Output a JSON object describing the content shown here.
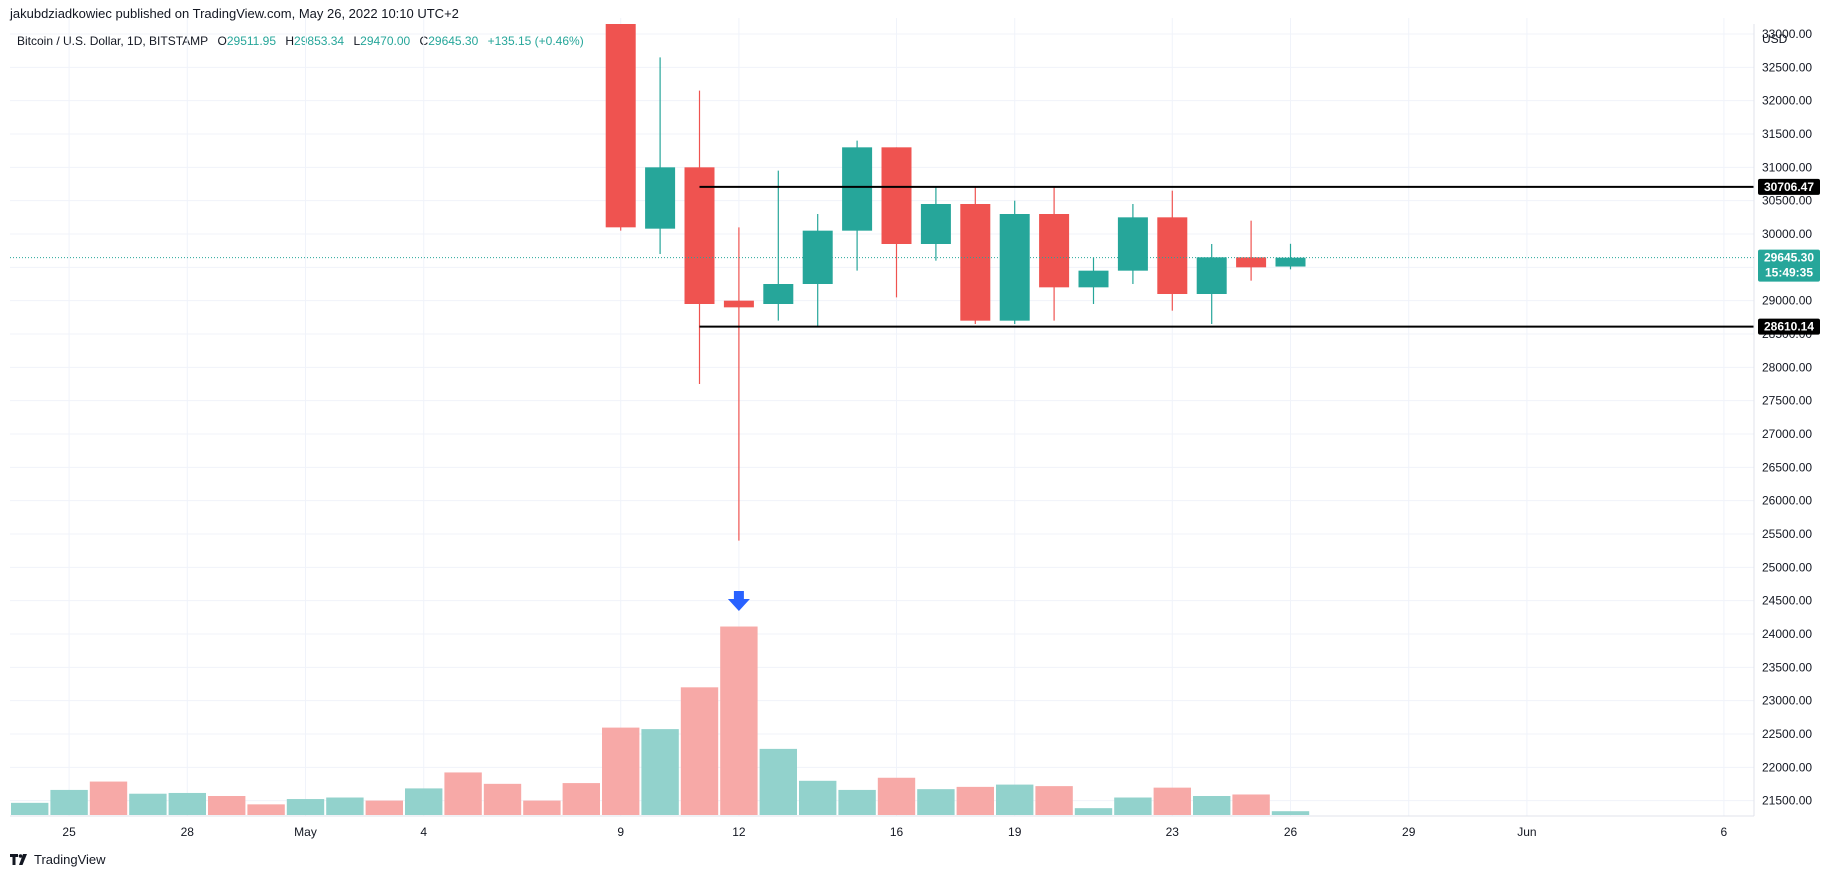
{
  "header": {
    "published": "jakubdziadkowiec published on TradingView.com, May 26, 2022 10:10 UTC+2",
    "symbol": "Bitcoin / U.S. Dollar, 1D, BITSTAMP",
    "open_label": "O",
    "open": "29511.95",
    "high_label": "H",
    "high": "29853.34",
    "low_label": "L",
    "low": "29470.00",
    "close_label": "C",
    "close": "29645.30",
    "change": "+135.15 (+0.46%)"
  },
  "footer": {
    "brand": "TradingView",
    "logo_icon": "tradingview-logo-icon"
  },
  "colors": {
    "up": "#26a69a",
    "down": "#ef5350",
    "up_volume": "#92d2cc",
    "down_volume": "#f7a9a7",
    "level_line": "#000000",
    "arrow": "#2962ff"
  },
  "chart_data": {
    "type": "candlestick",
    "currency_label": "USD",
    "y_ticks": [
      "33000.00",
      "32500.00",
      "32000.00",
      "31500.00",
      "31000.00",
      "30500.00",
      "30000.00",
      "29500.00",
      "29000.00",
      "28500.00",
      "28000.00",
      "27500.00",
      "27000.00",
      "26500.00",
      "26000.00",
      "25500.00",
      "25000.00",
      "24500.00",
      "24000.00",
      "23500.00",
      "23000.00",
      "22500.00",
      "22000.00",
      "21500.00"
    ],
    "ylim": [
      21300,
      33150
    ],
    "x_ticks": [
      {
        "index": 1,
        "label": "25"
      },
      {
        "index": 4,
        "label": "28"
      },
      {
        "index": 7,
        "label": "May"
      },
      {
        "index": 10,
        "label": "4"
      },
      {
        "index": 15,
        "label": "9"
      },
      {
        "index": 18,
        "label": "12"
      },
      {
        "index": 22,
        "label": "16"
      },
      {
        "index": 25,
        "label": "19"
      },
      {
        "index": 29,
        "label": "23"
      },
      {
        "index": 32,
        "label": "26"
      },
      {
        "index": 35,
        "label": "29"
      },
      {
        "index": 38,
        "label": "Jun"
      },
      {
        "index": 43,
        "label": "6"
      }
    ],
    "candles": [
      {
        "index": 15,
        "date": "May 9",
        "open": 33800,
        "high": 34200,
        "low": 30050,
        "close": 30100
      },
      {
        "index": 16,
        "date": "May 10",
        "open": 30080,
        "high": 32650,
        "low": 29700,
        "close": 31000
      },
      {
        "index": 17,
        "date": "May 11",
        "open": 31000,
        "high": 32150,
        "low": 27750,
        "close": 28950
      },
      {
        "index": 18,
        "date": "May 12",
        "open": 29000,
        "high": 30100,
        "low": 25400,
        "close": 28900
      },
      {
        "index": 19,
        "date": "May 13",
        "open": 28950,
        "high": 30950,
        "low": 28700,
        "close": 29250
      },
      {
        "index": 20,
        "date": "May 14",
        "open": 29250,
        "high": 30300,
        "low": 28600,
        "close": 30050
      },
      {
        "index": 21,
        "date": "May 15",
        "open": 30050,
        "high": 31400,
        "low": 29450,
        "close": 31300
      },
      {
        "index": 22,
        "date": "May 16",
        "open": 31300,
        "high": 31300,
        "low": 29050,
        "close": 29850
      },
      {
        "index": 23,
        "date": "May 17",
        "open": 29850,
        "high": 30700,
        "low": 29600,
        "close": 30450
      },
      {
        "index": 24,
        "date": "May 18",
        "open": 30450,
        "high": 30700,
        "low": 28650,
        "close": 28700
      },
      {
        "index": 25,
        "date": "May 19",
        "open": 28700,
        "high": 30500,
        "low": 28650,
        "close": 30300
      },
      {
        "index": 26,
        "date": "May 20",
        "open": 30300,
        "high": 30700,
        "low": 28700,
        "close": 29200
      },
      {
        "index": 27,
        "date": "May 21",
        "open": 29200,
        "high": 29650,
        "low": 28950,
        "close": 29450
      },
      {
        "index": 28,
        "date": "May 22",
        "open": 29450,
        "high": 30450,
        "low": 29250,
        "close": 30250
      },
      {
        "index": 29,
        "date": "May 23",
        "open": 30250,
        "high": 30650,
        "low": 28850,
        "close": 29100
      },
      {
        "index": 30,
        "date": "May 24",
        "open": 29100,
        "high": 29850,
        "low": 28650,
        "close": 29650
      },
      {
        "index": 31,
        "date": "May 25",
        "open": 29650,
        "high": 30200,
        "low": 29300,
        "close": 29500
      },
      {
        "index": 32,
        "date": "May 26",
        "open": 29512,
        "high": 29853,
        "low": 29470,
        "close": 29645
      }
    ],
    "volume": [
      {
        "index": 0,
        "dir": "up",
        "value": 0.16
      },
      {
        "index": 1,
        "dir": "up",
        "value": 0.33
      },
      {
        "index": 2,
        "dir": "down",
        "value": 0.44
      },
      {
        "index": 3,
        "dir": "up",
        "value": 0.28
      },
      {
        "index": 4,
        "dir": "up",
        "value": 0.29
      },
      {
        "index": 5,
        "dir": "down",
        "value": 0.25
      },
      {
        "index": 6,
        "dir": "down",
        "value": 0.14
      },
      {
        "index": 7,
        "dir": "up",
        "value": 0.21
      },
      {
        "index": 8,
        "dir": "up",
        "value": 0.23
      },
      {
        "index": 9,
        "dir": "down",
        "value": 0.19
      },
      {
        "index": 10,
        "dir": "up",
        "value": 0.35
      },
      {
        "index": 11,
        "dir": "down",
        "value": 0.56
      },
      {
        "index": 12,
        "dir": "down",
        "value": 0.41
      },
      {
        "index": 13,
        "dir": "down",
        "value": 0.19
      },
      {
        "index": 14,
        "dir": "down",
        "value": 0.42
      },
      {
        "index": 15,
        "dir": "down",
        "value": 1.15
      },
      {
        "index": 16,
        "dir": "up",
        "value": 1.13
      },
      {
        "index": 17,
        "dir": "down",
        "value": 1.68
      },
      {
        "index": 18,
        "dir": "down",
        "value": 2.48
      },
      {
        "index": 19,
        "dir": "up",
        "value": 0.87
      },
      {
        "index": 20,
        "dir": "up",
        "value": 0.45
      },
      {
        "index": 21,
        "dir": "up",
        "value": 0.33
      },
      {
        "index": 22,
        "dir": "down",
        "value": 0.49
      },
      {
        "index": 23,
        "dir": "up",
        "value": 0.34
      },
      {
        "index": 24,
        "dir": "down",
        "value": 0.37
      },
      {
        "index": 25,
        "dir": "up",
        "value": 0.4
      },
      {
        "index": 26,
        "dir": "down",
        "value": 0.38
      },
      {
        "index": 27,
        "dir": "up",
        "value": 0.09
      },
      {
        "index": 28,
        "dir": "up",
        "value": 0.23
      },
      {
        "index": 29,
        "dir": "down",
        "value": 0.36
      },
      {
        "index": 30,
        "dir": "up",
        "value": 0.25
      },
      {
        "index": 31,
        "dir": "down",
        "value": 0.27
      },
      {
        "index": 32,
        "dir": "up",
        "value": 0.05
      }
    ],
    "horizontal_levels": [
      {
        "price": 30706.47,
        "label": "30706.47",
        "from_index": 17
      },
      {
        "price": 28610.14,
        "label": "28610.14",
        "from_index": 17
      }
    ],
    "last_price": {
      "price": 29645.3,
      "label": "29645.30",
      "countdown": "15:49:35"
    },
    "annotation": {
      "type": "down-arrow",
      "index": 18
    }
  }
}
